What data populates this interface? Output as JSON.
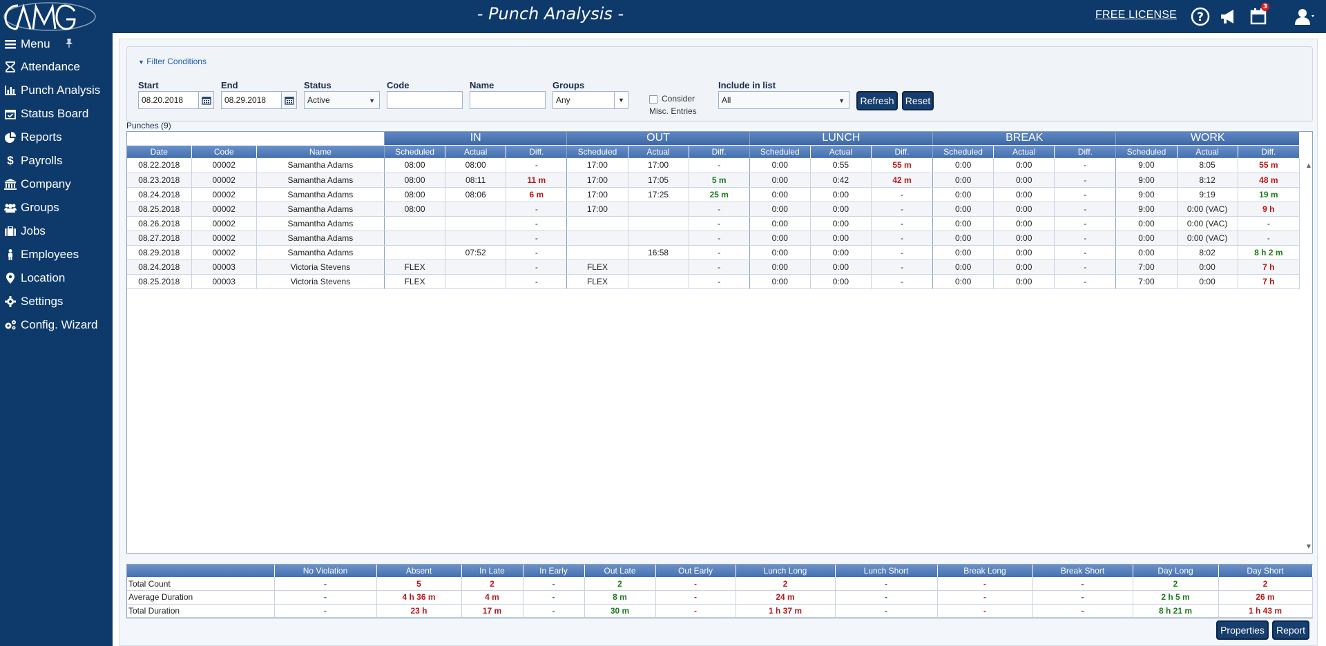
{
  "header": {
    "logo_text": "AMG",
    "logo_sub": "time",
    "title": "- Punch Analysis -",
    "free_license": "FREE LICENSE",
    "notifications": "3"
  },
  "sidebar": {
    "items": [
      {
        "label": "Menu",
        "icon": "bars-icon"
      },
      {
        "label": "Attendance",
        "icon": "hourglass-icon"
      },
      {
        "label": "Punch Analysis",
        "icon": "bar-chart-icon"
      },
      {
        "label": "Status Board",
        "icon": "calendar-check-icon"
      },
      {
        "label": "Reports",
        "icon": "pie-chart-icon"
      },
      {
        "label": "Payrolls",
        "icon": "dollar-icon"
      },
      {
        "label": "Company",
        "icon": "bank-icon"
      },
      {
        "label": "Groups",
        "icon": "users-icon"
      },
      {
        "label": "Jobs",
        "icon": "briefcase-icon"
      },
      {
        "label": "Employees",
        "icon": "person-icon"
      },
      {
        "label": "Location",
        "icon": "map-marker-icon"
      },
      {
        "label": "Settings",
        "icon": "gear-icon"
      },
      {
        "label": "Config. Wizard",
        "icon": "gears-icon"
      }
    ]
  },
  "filter": {
    "toggle": "Filter Conditions",
    "start_label": "Start",
    "start_value": "08.20.2018",
    "end_label": "End",
    "end_value": "08.29.2018",
    "status_label": "Status",
    "status_value": "Active",
    "code_label": "Code",
    "code_value": "",
    "name_label": "Name",
    "name_value": "",
    "groups_label": "Groups",
    "groups_value": "Any",
    "consider_line1": "Consider",
    "consider_line2": "Misc. Entries",
    "include_label": "Include in list",
    "include_value": "All",
    "refresh": "Refresh",
    "reset": "Reset"
  },
  "punches": {
    "label": "Punches (9)",
    "groups": [
      "IN",
      "OUT",
      "LUNCH",
      "BREAK",
      "WORK"
    ],
    "columns": [
      "Date",
      "Code",
      "Name",
      "Scheduled",
      "Actual",
      "Diff.",
      "Scheduled",
      "Actual",
      "Diff.",
      "Scheduled",
      "Actual",
      "Diff.",
      "Scheduled",
      "Actual",
      "Diff.",
      "Scheduled",
      "Actual",
      "Diff."
    ],
    "rows": [
      [
        "08.22.2018",
        "00002",
        "Samantha Adams",
        "08:00",
        "08:00",
        "-",
        "17:00",
        "17:00",
        "-",
        "0:00",
        "0:55",
        "55 m",
        "0:00",
        "0:00",
        "-",
        "9:00",
        "8:05",
        "55 m"
      ],
      [
        "08.23.2018",
        "00002",
        "Samantha Adams",
        "08:00",
        "08:11",
        "11 m",
        "17:00",
        "17:05",
        "5 m",
        "0:00",
        "0:42",
        "42 m",
        "0:00",
        "0:00",
        "-",
        "9:00",
        "8:12",
        "48 m"
      ],
      [
        "08.24.2018",
        "00002",
        "Samantha Adams",
        "08:00",
        "08:06",
        "6 m",
        "17:00",
        "17:25",
        "25 m",
        "0:00",
        "0:00",
        "-",
        "0:00",
        "0:00",
        "-",
        "9:00",
        "9:19",
        "19 m"
      ],
      [
        "08.25.2018",
        "00002",
        "Samantha Adams",
        "08:00",
        "",
        "-",
        "17:00",
        "",
        "-",
        "0:00",
        "0:00",
        "-",
        "0:00",
        "0:00",
        "-",
        "9:00",
        "0:00 (VAC)",
        "9 h"
      ],
      [
        "08.26.2018",
        "00002",
        "Samantha Adams",
        "",
        "",
        "-",
        "",
        "",
        "-",
        "0:00",
        "0:00",
        "-",
        "0:00",
        "0:00",
        "-",
        "0:00",
        "0:00 (VAC)",
        "-"
      ],
      [
        "08.27.2018",
        "00002",
        "Samantha Adams",
        "",
        "",
        "-",
        "",
        "",
        "-",
        "0:00",
        "0:00",
        "-",
        "0:00",
        "0:00",
        "-",
        "0:00",
        "0:00 (VAC)",
        "-"
      ],
      [
        "08.29.2018",
        "00002",
        "Samantha Adams",
        "",
        "07:52",
        "-",
        "",
        "16:58",
        "-",
        "0:00",
        "0:00",
        "-",
        "0:00",
        "0:00",
        "-",
        "0:00",
        "8:02",
        "8 h 2 m"
      ],
      [
        "08.24.2018",
        "00003",
        "Victoria Stevens",
        "FLEX",
        "",
        "-",
        "FLEX",
        "",
        "-",
        "0:00",
        "0:00",
        "-",
        "0:00",
        "0:00",
        "-",
        "7:00",
        "0:00",
        "7 h"
      ],
      [
        "08.25.2018",
        "00003",
        "Victoria Stevens",
        "FLEX",
        "",
        "-",
        "FLEX",
        "",
        "-",
        "0:00",
        "0:00",
        "-",
        "0:00",
        "0:00",
        "-",
        "7:00",
        "0:00",
        "7 h"
      ]
    ],
    "styles": [
      [
        "",
        "",
        "",
        "",
        "",
        "",
        "",
        "",
        "",
        "",
        "",
        "red",
        "",
        "",
        "",
        "",
        "",
        "red"
      ],
      [
        "",
        "",
        "",
        "",
        "",
        "red",
        "",
        "",
        "green",
        "",
        "",
        "red",
        "",
        "",
        "",
        "",
        "",
        "red"
      ],
      [
        "",
        "",
        "",
        "",
        "",
        "red",
        "",
        "",
        "green",
        "",
        "",
        "",
        "",
        "",
        "",
        "",
        "",
        "green"
      ],
      [
        "",
        "",
        "",
        "",
        "",
        "",
        "",
        "",
        "",
        "",
        "",
        "",
        "",
        "",
        "",
        "",
        "",
        "red"
      ],
      [
        "",
        "",
        "",
        "",
        "",
        "",
        "",
        "",
        "",
        "",
        "",
        "",
        "",
        "",
        "",
        "",
        "",
        ""
      ],
      [
        "",
        "",
        "",
        "",
        "",
        "",
        "",
        "",
        "",
        "",
        "",
        "",
        "",
        "",
        "",
        "",
        "",
        ""
      ],
      [
        "",
        "",
        "",
        "",
        "",
        "",
        "",
        "",
        "",
        "",
        "",
        "",
        "",
        "",
        "",
        "",
        "",
        "green"
      ],
      [
        "",
        "",
        "",
        "",
        "",
        "",
        "",
        "",
        "",
        "",
        "",
        "",
        "",
        "",
        "",
        "",
        "",
        "red"
      ],
      [
        "",
        "",
        "",
        "",
        "",
        "",
        "",
        "",
        "",
        "",
        "",
        "",
        "",
        "",
        "",
        "",
        "",
        "red"
      ]
    ]
  },
  "summary": {
    "columns": [
      "",
      "No Violation",
      "Absent",
      "In Late",
      "In Early",
      "Out Late",
      "Out Early",
      "Lunch Long",
      "Lunch Short",
      "Break Long",
      "Break Short",
      "Day Long",
      "Day Short"
    ],
    "rows": [
      [
        "Total Count",
        "-",
        "5",
        "2",
        "-",
        "2",
        "-",
        "2",
        "-",
        "-",
        "-",
        "2",
        "2"
      ],
      [
        "Average Duration",
        "-",
        "4 h 36 m",
        "4 m",
        "-",
        "8 m",
        "-",
        "24 m",
        "-",
        "-",
        "-",
        "2 h 5 m",
        "26 m"
      ],
      [
        "Total Duration",
        "-",
        "23 h",
        "17 m",
        "-",
        "30 m",
        "-",
        "1 h 37 m",
        "-",
        "-",
        "-",
        "8 h 21 m",
        "1 h 43 m"
      ]
    ],
    "colors": [
      "",
      "green",
      "red",
      "red",
      "green",
      "green",
      "red",
      "red",
      "green",
      "red",
      "red",
      "green",
      "red"
    ]
  },
  "footer": {
    "properties": "Properties",
    "report": "Report"
  }
}
